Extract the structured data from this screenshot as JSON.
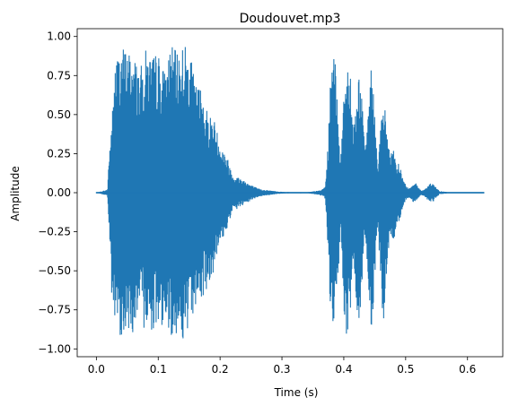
{
  "chart_data": {
    "type": "line",
    "title": "Doudouvet.mp3",
    "xlabel": "Time (s)",
    "ylabel": "Amplitude",
    "xlim": [
      -0.031,
      0.657
    ],
    "ylim": [
      -1.05,
      1.05
    ],
    "grid": false,
    "legend": "none",
    "color": "#1f77b4",
    "x_ticks": [
      0.0,
      0.1,
      0.2,
      0.3,
      0.4,
      0.5,
      0.6
    ],
    "x_tick_labels": [
      "0.0",
      "0.1",
      "0.2",
      "0.3",
      "0.4",
      "0.5",
      "0.6"
    ],
    "y_ticks": [
      1.0,
      0.75,
      0.5,
      0.25,
      0.0,
      -0.25,
      -0.5,
      -0.75,
      -1.0
    ],
    "y_tick_labels": [
      "1.00",
      "0.75",
      "0.50",
      "0.25",
      "0.00",
      "−0.25",
      "−0.50",
      "−0.75",
      "−1.00"
    ],
    "series": [
      {
        "x_start": 0.0,
        "x_end": 0.627,
        "envelope": {
          "t": [
            0.0,
            0.018,
            0.021,
            0.025,
            0.03,
            0.035,
            0.04,
            0.05,
            0.06,
            0.07,
            0.08,
            0.09,
            0.1,
            0.11,
            0.12,
            0.13,
            0.14,
            0.15,
            0.16,
            0.17,
            0.18,
            0.19,
            0.2,
            0.21,
            0.22,
            0.23,
            0.24,
            0.25,
            0.26,
            0.27,
            0.28,
            0.29,
            0.3,
            0.31,
            0.32,
            0.33,
            0.34,
            0.35,
            0.36,
            0.365,
            0.37,
            0.375,
            0.38,
            0.385,
            0.39,
            0.395,
            0.4,
            0.405,
            0.41,
            0.415,
            0.42,
            0.425,
            0.43,
            0.435,
            0.44,
            0.445,
            0.45,
            0.455,
            0.46,
            0.465,
            0.47,
            0.475,
            0.48,
            0.485,
            0.49,
            0.495,
            0.5,
            0.505,
            0.51,
            0.515,
            0.52,
            0.525,
            0.53,
            0.535,
            0.54,
            0.545,
            0.55,
            0.555,
            0.56,
            0.565,
            0.57,
            0.575,
            0.58,
            0.585,
            0.59,
            0.6,
            0.61,
            0.62,
            0.627
          ],
          "max": [
            0.0,
            0.02,
            0.3,
            0.45,
            0.85,
            0.9,
            0.95,
            0.92,
            0.9,
            0.78,
            0.92,
            0.88,
            0.9,
            0.78,
            0.95,
            0.9,
            0.97,
            0.92,
            0.7,
            0.68,
            0.52,
            0.48,
            0.32,
            0.25,
            0.12,
            0.1,
            0.08,
            0.05,
            0.03,
            0.02,
            0.015,
            0.01,
            0.006,
            0.005,
            0.003,
            0.005,
            0.004,
            0.008,
            0.015,
            0.02,
            0.04,
            0.35,
            0.9,
            0.88,
            0.62,
            0.2,
            0.65,
            0.88,
            0.87,
            0.45,
            0.55,
            0.82,
            0.55,
            0.25,
            0.6,
            0.85,
            0.5,
            0.2,
            0.45,
            0.6,
            0.42,
            0.25,
            0.28,
            0.17,
            0.2,
            0.1,
            0.05,
            0.03,
            0.05,
            0.07,
            0.04,
            0.015,
            0.02,
            0.04,
            0.06,
            0.055,
            0.03,
            0.01,
            0.008,
            0.006,
            0.004,
            0.003,
            0.002,
            0.0,
            0.0,
            0.0,
            0.0,
            0.0,
            0.0
          ],
          "min": [
            0.0,
            -0.02,
            -0.3,
            -0.72,
            -0.88,
            -0.9,
            -0.92,
            -0.9,
            -0.9,
            -0.8,
            -0.9,
            -0.88,
            -0.9,
            -0.82,
            -0.92,
            -0.9,
            -0.95,
            -0.92,
            -0.72,
            -0.7,
            -0.6,
            -0.5,
            -0.33,
            -0.25,
            -0.12,
            -0.1,
            -0.08,
            -0.05,
            -0.03,
            -0.02,
            -0.015,
            -0.01,
            -0.006,
            -0.005,
            -0.003,
            -0.005,
            -0.004,
            -0.008,
            -0.015,
            -0.02,
            -0.04,
            -0.4,
            -0.93,
            -0.9,
            -0.66,
            -0.2,
            -0.88,
            -0.93,
            -0.9,
            -0.45,
            -0.68,
            -0.9,
            -0.6,
            -0.25,
            -0.7,
            -0.9,
            -0.55,
            -0.2,
            -0.6,
            -0.93,
            -0.5,
            -0.25,
            -0.35,
            -0.2,
            -0.2,
            -0.1,
            -0.05,
            -0.03,
            -0.05,
            -0.07,
            -0.04,
            -0.015,
            -0.02,
            -0.045,
            -0.06,
            -0.055,
            -0.03,
            -0.01,
            -0.008,
            -0.006,
            -0.004,
            -0.003,
            -0.002,
            0.0,
            0.0,
            0.0,
            0.0,
            0.0,
            0.0
          ]
        }
      }
    ]
  }
}
